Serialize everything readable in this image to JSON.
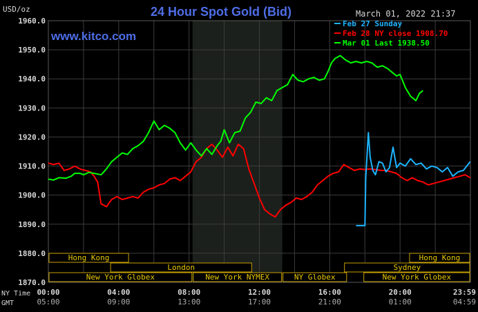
{
  "header": {
    "unit": "USD/oz",
    "title": "24 Hour Spot Gold (Bid)",
    "timestamp": "March 01, 2022 21:37",
    "watermark": "www.kitco.com"
  },
  "colors": {
    "background": "#000000",
    "grid": "#3c3c3c",
    "shade": "#1c201c",
    "title": "#4e6de6",
    "axis_text": "#d8d8d8",
    "green": "#00ff00",
    "red": "#ff0000",
    "cyan": "#1eb4ff",
    "session_border": "#c8a000",
    "session_text": "#e8c800"
  },
  "legend": [
    {
      "label": "Feb 27 Sunday",
      "color": "#1eb4ff"
    },
    {
      "label": "Feb 28 NY close 1908.70",
      "color": "#ff0000"
    },
    {
      "label": "Mar 01 Last 1938.50",
      "color": "#00ff00"
    }
  ],
  "row_labels": {
    "ny_time": "NY Time",
    "gmt": "GMT"
  },
  "x_ticks_ny": [
    "00:00",
    "04:00",
    "08:00",
    "12:00",
    "16:00",
    "20:00",
    "23:59"
  ],
  "x_ticks_gmt": [
    "05:00",
    "09:00",
    "13:00",
    "17:00",
    "21:00",
    "01:00",
    "04:59"
  ],
  "y_ticks": [
    "1960.0",
    "1950.0",
    "1940.0",
    "1930.0",
    "1920.0",
    "1910.0",
    "1900.0",
    "1890.0",
    "1880.0",
    "1870.0"
  ],
  "sessions": [
    {
      "name": "Hong Kong",
      "start_hour": 0,
      "end_hour": 4.6,
      "row": 0
    },
    {
      "name": "Hong Kong",
      "start_hour": 20.5,
      "end_hour": 24,
      "row": 0
    },
    {
      "name": "London",
      "start_hour": 3.5,
      "end_hour": 11.6,
      "row": 1
    },
    {
      "name": "Sydney",
      "start_hour": 16.8,
      "end_hour": 24,
      "row": 1
    },
    {
      "name": "New York Globex",
      "start_hour": 0,
      "end_hour": 8.2,
      "row": 2
    },
    {
      "name": "New York NYMEX",
      "start_hour": 8.2,
      "end_hour": 13.3,
      "row": 2
    },
    {
      "name": "NY Globex",
      "start_hour": 13.3,
      "end_hour": 17.0,
      "row": 2
    },
    {
      "name": "New York Globex",
      "start_hour": 17.9,
      "end_hour": 24,
      "row": 2
    }
  ],
  "chart_data": {
    "type": "line",
    "title": "24 Hour Spot Gold (Bid)",
    "ylabel": "USD/oz",
    "xlabel": "NY Time / GMT",
    "xlim": [
      0,
      24
    ],
    "ylim": [
      1870,
      1960
    ],
    "grid": true,
    "shaded_range_hours": [
      8.2,
      13.3
    ],
    "legend_position": "top-right",
    "series": [
      {
        "name": "Mar 01 Last 1938.50",
        "color": "#00ff00",
        "x": [
          0,
          0.3,
          0.6,
          1.0,
          1.3,
          1.5,
          1.8,
          2.0,
          2.3,
          2.6,
          3.0,
          3.3,
          3.6,
          3.9,
          4.2,
          4.5,
          4.8,
          5.1,
          5.4,
          5.7,
          6.0,
          6.3,
          6.6,
          6.9,
          7.2,
          7.5,
          7.8,
          8.1,
          8.4,
          8.7,
          9.0,
          9.3,
          9.6,
          9.8,
          10.0,
          10.3,
          10.6,
          10.9,
          11.2,
          11.5,
          11.8,
          12.1,
          12.4,
          12.7,
          13.0,
          13.3,
          13.6,
          13.9,
          14.2,
          14.5,
          14.8,
          15.1,
          15.4,
          15.7,
          15.9,
          16.1,
          16.3,
          16.6,
          16.9,
          17.2,
          17.5,
          17.8,
          18.1,
          18.4,
          18.7,
          19.0,
          19.3,
          19.6,
          19.8,
          20.0,
          20.3,
          20.6,
          20.9,
          21.1,
          21.3
        ],
        "values": [
          1905.5,
          1905.2,
          1906.0,
          1905.8,
          1906.5,
          1907.5,
          1907.5,
          1907.0,
          1907.8,
          1907.5,
          1907.0,
          1909.0,
          1911.5,
          1913.0,
          1914.5,
          1914.0,
          1916.0,
          1917.0,
          1918.5,
          1921.5,
          1925.5,
          1922.5,
          1924.0,
          1923.0,
          1921.5,
          1918.0,
          1915.5,
          1918.0,
          1915.5,
          1913.5,
          1916.0,
          1914.0,
          1917.0,
          1918.5,
          1922.5,
          1918.0,
          1921.5,
          1922.0,
          1926.5,
          1928.5,
          1932.0,
          1931.5,
          1933.5,
          1932.5,
          1936.0,
          1937.0,
          1938.0,
          1941.5,
          1939.5,
          1939.0,
          1940.0,
          1940.5,
          1939.5,
          1940.0,
          1942.5,
          1945.5,
          1947.0,
          1948.0,
          1946.5,
          1945.5,
          1946.0,
          1945.5,
          1946.0,
          1945.5,
          1944.0,
          1944.5,
          1943.5,
          1942.0,
          1941.0,
          1941.5,
          1937.0,
          1934.0,
          1932.5,
          1935.0,
          1936.0
        ]
      },
      {
        "name": "Feb 28 NY close 1908.70",
        "color": "#ff0000",
        "x": [
          0,
          0.3,
          0.6,
          0.9,
          1.2,
          1.5,
          1.8,
          2.1,
          2.4,
          2.6,
          2.8,
          3.0,
          3.3,
          3.6,
          3.9,
          4.2,
          4.5,
          4.8,
          5.1,
          5.4,
          5.7,
          6.0,
          6.3,
          6.6,
          6.9,
          7.2,
          7.5,
          7.8,
          8.1,
          8.4,
          8.7,
          9.0,
          9.3,
          9.6,
          9.9,
          10.2,
          10.5,
          10.8,
          11.1,
          11.4,
          11.7,
          12.0,
          12.3,
          12.6,
          12.9,
          13.2,
          13.5,
          13.8,
          14.1,
          14.4,
          14.7,
          15.0,
          15.3,
          15.6,
          15.9,
          16.2,
          16.5,
          16.8,
          17.1,
          17.4,
          17.7,
          18.0,
          18.3,
          18.6,
          18.9,
          19.2,
          19.5,
          19.8,
          20.1,
          20.4,
          20.7,
          21.0,
          21.3,
          21.6,
          21.9,
          22.2,
          22.5,
          22.8,
          23.1,
          23.4,
          23.7,
          23.99
        ],
        "values": [
          1911.0,
          1910.5,
          1911.0,
          1908.5,
          1909.0,
          1910.0,
          1909.0,
          1908.5,
          1908.0,
          1906.5,
          1904.5,
          1897.0,
          1896.0,
          1898.5,
          1899.5,
          1898.5,
          1899.0,
          1899.5,
          1899.0,
          1901.0,
          1902.0,
          1902.5,
          1903.5,
          1904.0,
          1905.5,
          1906.0,
          1905.0,
          1906.5,
          1908.0,
          1911.5,
          1913.0,
          1916.0,
          1917.5,
          1915.5,
          1913.0,
          1916.5,
          1913.5,
          1917.5,
          1916.0,
          1909.0,
          1904.0,
          1899.0,
          1895.0,
          1893.5,
          1892.5,
          1895.0,
          1896.5,
          1897.5,
          1899.0,
          1898.5,
          1899.5,
          1901.0,
          1903.5,
          1905.0,
          1906.5,
          1907.5,
          1908.0,
          1910.5,
          1909.5,
          1908.5,
          1909.0,
          1908.8,
          1909.0,
          1908.8,
          1908.5,
          1908.5,
          1908.0,
          1907.5,
          1906.0,
          1905.0,
          1906.0,
          1905.0,
          1904.5,
          1903.5,
          1904.0,
          1904.5,
          1905.0,
          1905.5,
          1906.0,
          1906.5,
          1907.0,
          1906.0
        ]
      },
      {
        "name": "Feb 27 Sunday",
        "color": "#1eb4ff",
        "x": [
          17.5,
          17.9,
          18.0,
          18.05,
          18.2,
          18.3,
          18.45,
          18.6,
          18.8,
          19.0,
          19.2,
          19.4,
          19.6,
          19.8,
          20.0,
          20.3,
          20.6,
          20.9,
          21.2,
          21.5,
          21.8,
          22.1,
          22.4,
          22.7,
          23.0,
          23.3,
          23.6,
          23.99
        ],
        "values": [
          1889.5,
          1889.5,
          1889.5,
          1906.0,
          1921.5,
          1913.0,
          1908.5,
          1907.0,
          1911.5,
          1911.0,
          1908.0,
          1909.5,
          1916.5,
          1909.5,
          1911.0,
          1910.0,
          1912.5,
          1910.5,
          1911.0,
          1909.0,
          1910.0,
          1909.5,
          1908.0,
          1909.5,
          1906.5,
          1908.0,
          1908.5,
          1911.5
        ]
      }
    ]
  }
}
